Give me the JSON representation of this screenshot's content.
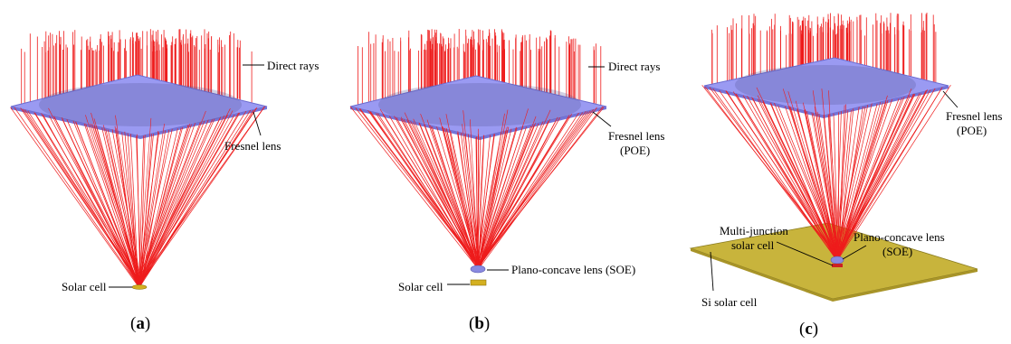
{
  "panels": [
    {
      "id": "a",
      "caption_open": "(",
      "caption_letter": "a",
      "caption_close": ")",
      "labels": {
        "direct_rays": "Direct rays",
        "fresnel_line1": "Fresnel lens",
        "fresnel_line2": "",
        "cell": "Solar cell"
      }
    },
    {
      "id": "b",
      "caption_open": "(",
      "caption_letter": "b",
      "caption_close": ")",
      "labels": {
        "direct_rays": "Direct rays",
        "fresnel_line1": "Fresnel lens",
        "fresnel_line2": "(POE)",
        "soe": "Plano-concave lens (SOE)",
        "cell": "Solar cell"
      }
    },
    {
      "id": "c",
      "caption_open": "(",
      "caption_letter": "c",
      "caption_close": ")",
      "labels": {
        "fresnel_line1": "Fresnel lens",
        "fresnel_line2": "(POE)",
        "mj_line1": "Multi-junction",
        "mj_line2": "solar cell",
        "soe_line1": "Plano-concave lens",
        "soe_line2": "(SOE)",
        "si_cell": "Si solar cell"
      }
    }
  ],
  "colors": {
    "rays": "#ee1c1c",
    "fresnel_lens": "#9a9af2",
    "si_cell": "#c8b43c",
    "solar_cell": "#d4b020",
    "soe_lens": "#8a8ae0"
  }
}
